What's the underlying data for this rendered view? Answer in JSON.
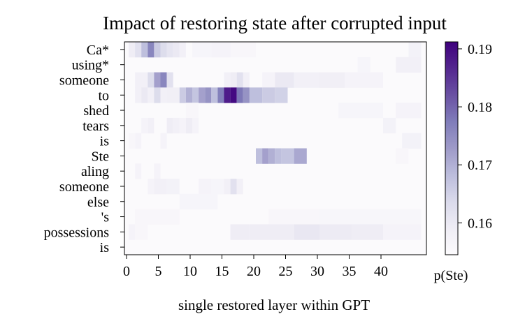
{
  "chart_data": {
    "type": "heatmap",
    "title": "Impact of restoring state after corrupted input",
    "xlabel": "single restored layer within GPT",
    "ylabel": "",
    "x_ticks": [
      0,
      5,
      10,
      15,
      20,
      25,
      30,
      35,
      40
    ],
    "x_range": [
      0,
      47
    ],
    "rows": [
      "Ca*",
      "using*",
      "someone",
      "to",
      "shed",
      "tears",
      "is",
      "Ste",
      "aling",
      "someone",
      "else",
      "'s",
      "possessions",
      "is"
    ],
    "colorbar": {
      "label": "p(Ste)",
      "min": 0.1545,
      "max": 0.1912,
      "ticks": [
        0.16,
        0.17,
        0.18,
        0.19
      ],
      "colors": [
        "#fcfbfd",
        "#efedf5",
        "#dadaeb",
        "#bcbddc",
        "#9e9ac8",
        "#807dba",
        "#6a51a3",
        "#54278f",
        "#3f007d"
      ]
    },
    "base_value": 0.1548,
    "highlights": [
      {
        "row": 0,
        "segments": [
          [
            0,
            1,
            0.159
          ],
          [
            1,
            2,
            0.162
          ],
          [
            2,
            3,
            0.168
          ],
          [
            3,
            4,
            0.176
          ],
          [
            4,
            5,
            0.166
          ],
          [
            5,
            6,
            0.163
          ],
          [
            6,
            7,
            0.161
          ],
          [
            7,
            8,
            0.16
          ],
          [
            8,
            9,
            0.158
          ],
          [
            10,
            13,
            0.1565
          ],
          [
            13,
            16,
            0.157
          ],
          [
            16,
            20,
            0.156
          ],
          [
            44,
            46,
            0.1575
          ]
        ]
      },
      {
        "row": 1,
        "segments": [
          [
            36,
            38,
            0.1565
          ],
          [
            42,
            46,
            0.158
          ]
        ]
      },
      {
        "row": 2,
        "segments": [
          [
            1,
            3,
            0.158
          ],
          [
            3,
            4,
            0.163
          ],
          [
            4,
            5,
            0.172
          ],
          [
            5,
            6,
            0.176
          ],
          [
            6,
            7,
            0.162
          ],
          [
            15,
            16,
            0.158
          ],
          [
            16,
            17,
            0.159
          ],
          [
            17,
            18,
            0.162
          ],
          [
            18,
            19,
            0.158
          ],
          [
            21,
            23,
            0.157
          ],
          [
            23,
            26,
            0.16
          ],
          [
            26,
            30,
            0.158
          ],
          [
            30,
            34,
            0.1585
          ],
          [
            34,
            40,
            0.157
          ]
        ]
      },
      {
        "row": 3,
        "segments": [
          [
            1,
            2,
            0.158
          ],
          [
            2,
            3,
            0.16
          ],
          [
            3,
            4,
            0.158
          ],
          [
            4,
            5,
            0.163
          ],
          [
            5,
            6,
            0.158
          ],
          [
            6,
            8,
            0.1585
          ],
          [
            8,
            9,
            0.166
          ],
          [
            9,
            10,
            0.17
          ],
          [
            10,
            11,
            0.167
          ],
          [
            11,
            12,
            0.172
          ],
          [
            12,
            13,
            0.174
          ],
          [
            13,
            14,
            0.168
          ],
          [
            14,
            15,
            0.177
          ],
          [
            15,
            16,
            0.188
          ],
          [
            16,
            17,
            0.19
          ],
          [
            17,
            18,
            0.178
          ],
          [
            18,
            19,
            0.174
          ],
          [
            19,
            21,
            0.168
          ],
          [
            21,
            23,
            0.166
          ],
          [
            23,
            25,
            0.165
          ]
        ]
      },
      {
        "row": 4,
        "segments": [
          [
            9,
            11,
            0.156
          ],
          [
            33,
            40,
            0.1565
          ],
          [
            42,
            46,
            0.157
          ]
        ]
      },
      {
        "row": 5,
        "segments": [
          [
            2,
            3,
            0.157
          ],
          [
            3,
            4,
            0.158
          ],
          [
            6,
            7,
            0.159
          ],
          [
            7,
            8,
            0.158
          ],
          [
            8,
            9,
            0.157
          ],
          [
            9,
            10,
            0.159
          ],
          [
            10,
            11,
            0.157
          ],
          [
            40,
            42,
            0.1575
          ]
        ]
      },
      {
        "row": 6,
        "segments": [
          [
            0,
            1,
            0.156
          ],
          [
            1,
            2,
            0.157
          ],
          [
            5,
            6,
            0.157
          ],
          [
            43,
            46,
            0.1575
          ]
        ]
      },
      {
        "row": 7,
        "segments": [
          [
            20,
            21,
            0.168
          ],
          [
            21,
            22,
            0.172
          ],
          [
            22,
            23,
            0.17
          ],
          [
            23,
            24,
            0.168
          ],
          [
            24,
            26,
            0.167
          ],
          [
            26,
            28,
            0.171
          ],
          [
            42,
            44,
            0.156
          ]
        ]
      },
      {
        "row": 8,
        "segments": [
          [
            1,
            2,
            0.157
          ],
          [
            4,
            5,
            0.157
          ]
        ]
      },
      {
        "row": 9,
        "segments": [
          [
            3,
            4,
            0.157
          ],
          [
            4,
            6,
            0.158
          ],
          [
            6,
            8,
            0.1575
          ],
          [
            11,
            13,
            0.157
          ],
          [
            13,
            15,
            0.1565
          ],
          [
            15,
            16,
            0.158
          ],
          [
            16,
            17,
            0.162
          ],
          [
            17,
            18,
            0.158
          ]
        ]
      },
      {
        "row": 10,
        "segments": [
          [
            8,
            14,
            0.1565
          ]
        ]
      },
      {
        "row": 11,
        "segments": [
          [
            1,
            8,
            0.156
          ],
          [
            22,
            30,
            0.156
          ],
          [
            30,
            46,
            0.1562
          ]
        ]
      },
      {
        "row": 12,
        "segments": [
          [
            0,
            1,
            0.157
          ],
          [
            1,
            3,
            0.156
          ],
          [
            16,
            19,
            0.159
          ],
          [
            19,
            26,
            0.159
          ],
          [
            26,
            30,
            0.1605
          ],
          [
            30,
            35,
            0.1595
          ],
          [
            35,
            40,
            0.159
          ],
          [
            40,
            46,
            0.157
          ]
        ]
      },
      {
        "row": 13,
        "segments": []
      }
    ]
  }
}
